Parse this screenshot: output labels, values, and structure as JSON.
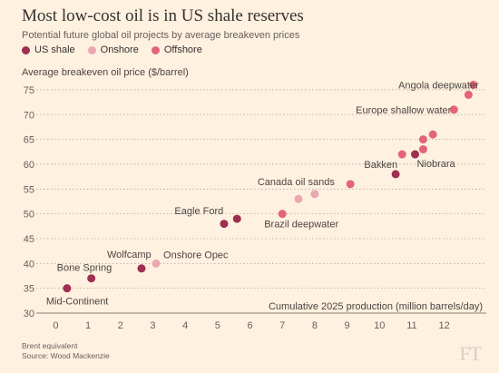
{
  "colors": {
    "background": "#fff1e0",
    "us_shale": "#9e2f50",
    "onshore": "#eba8b0",
    "offshore": "#e46377",
    "grid": "#b0a89d"
  },
  "chart_data": {
    "type": "scatter",
    "title": "Most low-cost oil is in US shale reserves",
    "subtitle": "Potential future global oil projects by average breakeven prices",
    "ylabel": "Average breakeven oil price ($/barrel)",
    "xlabel": "Cumulative 2025 production (million barrels/day)",
    "xlim": [
      -0.6,
      13.3
    ],
    "ylim": [
      30,
      77
    ],
    "xticks": [
      0,
      1,
      2,
      3,
      4,
      5,
      6,
      7,
      8,
      9,
      10,
      11,
      12
    ],
    "yticks": [
      30,
      35,
      40,
      45,
      50,
      55,
      60,
      65,
      70,
      75
    ],
    "grid": "horizontal",
    "legend": [
      {
        "name": "US shale",
        "key": "us_shale"
      },
      {
        "name": "Onshore",
        "key": "onshore"
      },
      {
        "name": "Offshore",
        "key": "offshore"
      }
    ],
    "points": [
      {
        "x": 0.35,
        "y": 35,
        "cat": "us_shale",
        "label": "Mid-Continent"
      },
      {
        "x": 1.1,
        "y": 37,
        "cat": "us_shale",
        "label": "Bone Spring"
      },
      {
        "x": 2.65,
        "y": 39,
        "cat": "us_shale",
        "label": "Wolfcamp"
      },
      {
        "x": 3.1,
        "y": 40,
        "cat": "onshore",
        "label": "Onshore Opec"
      },
      {
        "x": 5.2,
        "y": 48,
        "cat": "us_shale",
        "label": ""
      },
      {
        "x": 5.6,
        "y": 49,
        "cat": "us_shale",
        "label": "Eagle Ford"
      },
      {
        "x": 7.0,
        "y": 50,
        "cat": "offshore",
        "label": "Brazil deepwater"
      },
      {
        "x": 7.5,
        "y": 53,
        "cat": "onshore",
        "label": ""
      },
      {
        "x": 8.0,
        "y": 54,
        "cat": "onshore",
        "label": "Canada oil sands"
      },
      {
        "x": 9.1,
        "y": 56,
        "cat": "offshore",
        "label": ""
      },
      {
        "x": 10.5,
        "y": 58,
        "cat": "us_shale",
        "label": "Bakken"
      },
      {
        "x": 10.7,
        "y": 62,
        "cat": "offshore",
        "label": ""
      },
      {
        "x": 11.1,
        "y": 62,
        "cat": "us_shale",
        "label": "Niobrara"
      },
      {
        "x": 11.35,
        "y": 63,
        "cat": "offshore",
        "label": ""
      },
      {
        "x": 11.35,
        "y": 65,
        "cat": "offshore",
        "label": ""
      },
      {
        "x": 11.65,
        "y": 66,
        "cat": "offshore",
        "label": ""
      },
      {
        "x": 12.3,
        "y": 71,
        "cat": "offshore",
        "label": "Europe shallow water"
      },
      {
        "x": 12.75,
        "y": 74,
        "cat": "offshore",
        "label": ""
      },
      {
        "x": 12.9,
        "y": 76,
        "cat": "offshore",
        "label": "Angola deepwater"
      }
    ]
  },
  "footnotes": {
    "line1": "Brent equivalent",
    "line2": "Source: Wood Mackenzie"
  },
  "logo": "FT"
}
